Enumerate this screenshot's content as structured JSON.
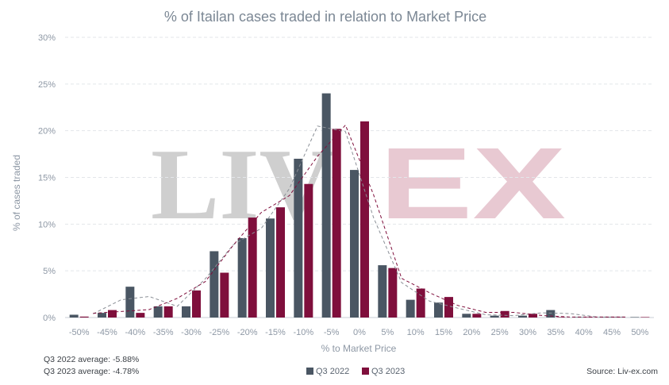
{
  "chart_data": {
    "type": "bar",
    "title": "% of Itailan cases traded in relation to Market Price",
    "xlabel": "% to Market Price",
    "ylabel": "% of cases traded",
    "categories": [
      "-50%",
      "-45%",
      "-40%",
      "-35%",
      "-30%",
      "-25%",
      "-20%",
      "-15%",
      "-10%",
      "-5%",
      "0%",
      "5%",
      "10%",
      "15%",
      "20%",
      "25%",
      "30%",
      "35%",
      "40%",
      "45%",
      "50%"
    ],
    "series": [
      {
        "name": "Q3 2022",
        "color": "#4a5663",
        "values": [
          0.3,
          0.5,
          3.3,
          1.2,
          1.2,
          7.1,
          8.5,
          10.6,
          17.0,
          24.0,
          15.8,
          5.6,
          1.9,
          1.6,
          0.4,
          0.2,
          0.2,
          0.8,
          0.05,
          0.05,
          0.05
        ]
      },
      {
        "name": "Q3 2023",
        "color": "#7f0f3c",
        "values": [
          0.1,
          0.8,
          0.5,
          1.2,
          2.9,
          4.8,
          10.7,
          11.8,
          14.3,
          20.2,
          21.0,
          5.3,
          3.1,
          2.2,
          0.4,
          0.7,
          0.4,
          0.05,
          0.05,
          0.05,
          0.05
        ]
      }
    ],
    "ylim": [
      0,
      30
    ],
    "yticks": [
      "0%",
      "5%",
      "10%",
      "15%",
      "20%",
      "25%",
      "30%"
    ],
    "grid": true,
    "legend": "bottom-center",
    "trendlines": "dashed moving average per series"
  },
  "watermark": {
    "left": "LIV",
    "right": "EX",
    "left_color": "#cfcfcf",
    "right_color": "#e8c9d2"
  },
  "notes": {
    "avg_2022": "Q3 2022 average: -5.88%",
    "avg_2023": "Q3 2023 average: -4.78%",
    "source": "Source: Liv-ex.com"
  },
  "legend": {
    "item_2022": "Q3 2022",
    "item_2023": "Q3 2023"
  }
}
